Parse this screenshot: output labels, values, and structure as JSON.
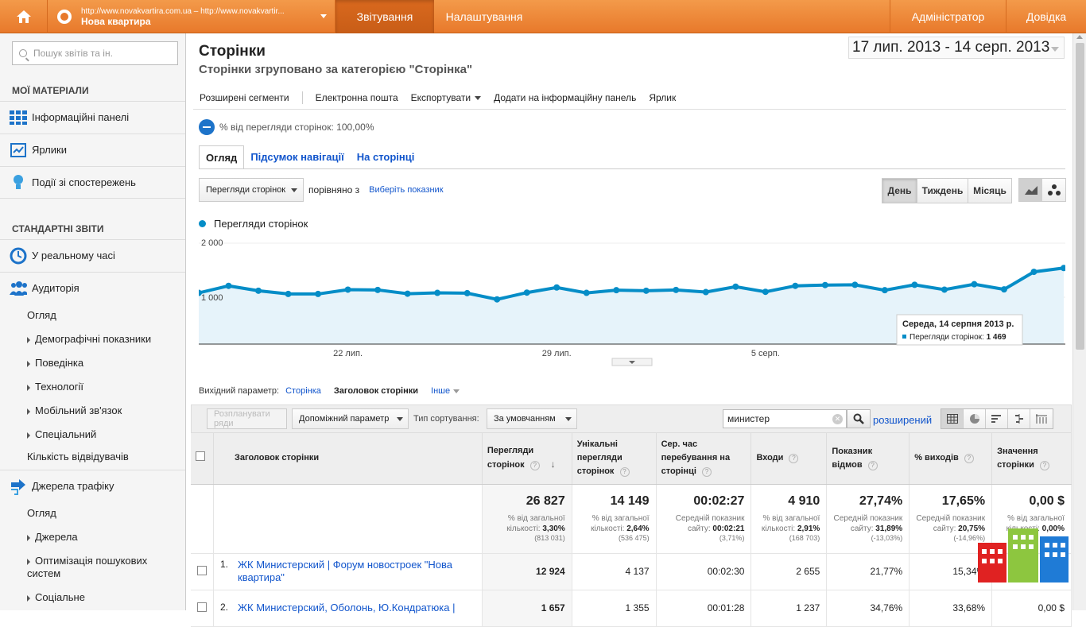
{
  "topbar": {
    "site_url": "http://www.novakvartira.com.ua – http://www.novakvartir...",
    "site_name": "Нова квартира",
    "tabs": [
      "Звітування",
      "Налаштування"
    ],
    "admin": "Адміністратор",
    "help": "Довідка"
  },
  "sidebar": {
    "search_placeholder": "Пошук звітів та ін.",
    "my_section": "МОЇ МАТЕРІАЛИ",
    "my_items": [
      "Інформаційні панелі",
      "Ярлики",
      "Події зі спостережень"
    ],
    "std_section": "СТАНДАРТНІ ЗВІТИ",
    "realtime": "У реальному часі",
    "audience": "Аудиторія",
    "audience_sub": [
      "Огляд",
      "Демографічні показники",
      "Поведінка",
      "Технології",
      "Мобільний зв'язок",
      "Спеціальний",
      "Кількість відвідувачів"
    ],
    "traffic": "Джерела трафіку",
    "traffic_sub": [
      "Огляд",
      "Джерела",
      "Оптимізація пошукових систем",
      "Соціальне"
    ]
  },
  "header": {
    "title": "Сторінки",
    "subtitle": "Сторінки згруповано за категорією \"Сторінка\"",
    "date_range": "17 лип. 2013 - 14 серп. 2013"
  },
  "toolbar": {
    "segments": "Розширені сегменти",
    "email": "Електронна пошта",
    "export": "Експортувати",
    "add_dashboard": "Додати на інформаційну панель",
    "shortcut": "Ярлик"
  },
  "segment_label": "% від перегляди сторінок: 100,00%",
  "tabs": [
    "Огляд",
    "Підсумок навігації",
    "На сторінці"
  ],
  "metric": {
    "selected": "Перегляди сторінок",
    "compare_label": "порівняно з",
    "compare_link": "Виберіть показник"
  },
  "period": [
    "День",
    "Тиждень",
    "Місяць"
  ],
  "chart_data": {
    "type": "area",
    "series": [
      {
        "name": "Перегляди сторінок",
        "values": [
          1080,
          1210,
          1120,
          1060,
          1060,
          1140,
          1135,
          1065,
          1080,
          1075,
          960,
          1085,
          1180,
          1080,
          1130,
          1120,
          1135,
          1095,
          1195,
          1100,
          1210,
          1225,
          1230,
          1130,
          1230,
          1140,
          1240,
          1145,
          1469,
          1540
        ]
      }
    ],
    "x_tick_labels": [
      "22 лип.",
      "29 лип.",
      "5 серп."
    ],
    "y_tick_labels": [
      "2 000",
      "1 000"
    ],
    "ylim": [
      0,
      2000
    ],
    "tooltip": {
      "title": "Середа, 14 серпня 2013 р.",
      "label": "Перегляди сторінок:",
      "value": "1 469"
    },
    "color": "#058dc7"
  },
  "dimension": {
    "label": "Вихідний параметр:",
    "options": [
      "Сторінка",
      "Заголовок сторінки",
      "Інше"
    ]
  },
  "controls": {
    "plot_rows": "Розпланувати ряди",
    "secondary": "Допоміжний параметр",
    "sort_label": "Тип сортування:",
    "sort_value": "За умовчанням",
    "filter_value": "министер",
    "advanced": "розширений"
  },
  "table": {
    "headers": [
      "Заголовок сторінки",
      "Перегляди сторінок",
      "Унікальні перегляди сторінок",
      "Сер. час перебування на сторінці",
      "Входи",
      "Показник відмов",
      "% виходів",
      "Значення сторінки"
    ],
    "totals": [
      {
        "value": "26 827",
        "sub1": "% від загальної кількості:",
        "sub_val": "3,30%",
        "sub2": "(813 031)"
      },
      {
        "value": "14 149",
        "sub1": "% від загальної кількості:",
        "sub_val": "2,64%",
        "sub2": "(536 475)"
      },
      {
        "value": "00:02:27",
        "sub1": "Середній показник сайту:",
        "sub_val": "00:02:21",
        "sub2": "(3,71%)"
      },
      {
        "value": "4 910",
        "sub1": "% від загальної кількості:",
        "sub_val": "2,91%",
        "sub2": "(168 703)"
      },
      {
        "value": "27,74%",
        "sub1": "Середній показник сайту:",
        "sub_val": "31,89%",
        "sub2": "(-13,03%)"
      },
      {
        "value": "17,65%",
        "sub1": "Середній показник сайту:",
        "sub_val": "20,75%",
        "sub2": "(-14,96%)"
      },
      {
        "value": "0,00 $",
        "sub1": "% від загальної кількості:",
        "sub_val": "0,00%",
        "sub2": ""
      }
    ],
    "rows": [
      {
        "n": "1.",
        "title": "ЖК Министерский | Форум новостроек \"Нова квартира\"",
        "cells": [
          "12 924",
          "4 137",
          "00:02:30",
          "2 655",
          "21,77%",
          "15,34%",
          ""
        ]
      },
      {
        "n": "2.",
        "title": "ЖК Министерский, Оболонь, Ю.Кондратюка |",
        "cells": [
          "1 657",
          "1 355",
          "00:01:28",
          "1 237",
          "34,76%",
          "33,68%",
          "0,00 $"
        ]
      }
    ]
  }
}
